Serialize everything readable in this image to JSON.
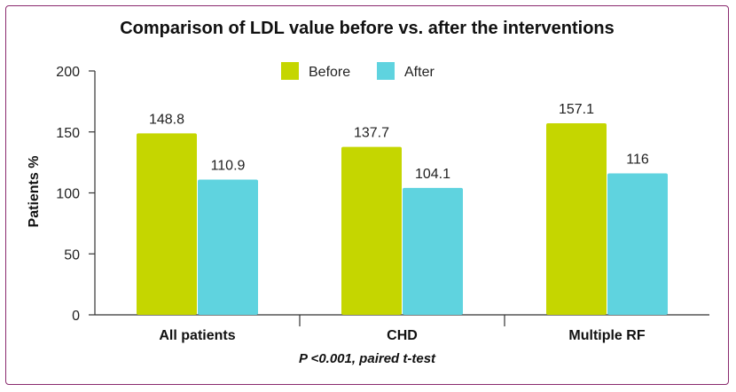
{
  "chart_data": {
    "type": "bar",
    "title": "Comparison of LDL value before vs. after the interventions",
    "ylabel": "Patients %",
    "xlabel": "",
    "ylim": [
      0,
      200
    ],
    "yticks": [
      0,
      50,
      100,
      150,
      200
    ],
    "grid": false,
    "legend_position": "top-center",
    "categories": [
      "All patients",
      "CHD",
      "Multiple RF"
    ],
    "series": [
      {
        "name": "Before",
        "color": "#c5d600",
        "values": [
          148.8,
          137.7,
          157.1
        ],
        "labels": [
          "148.8",
          "137.7",
          "157.1"
        ]
      },
      {
        "name": "After",
        "color": "#5fd3df",
        "values": [
          110.9,
          104.1,
          116
        ],
        "labels": [
          "110.9",
          "104.1",
          "116"
        ]
      }
    ],
    "footnote": "P <0.001, paired t-test"
  }
}
